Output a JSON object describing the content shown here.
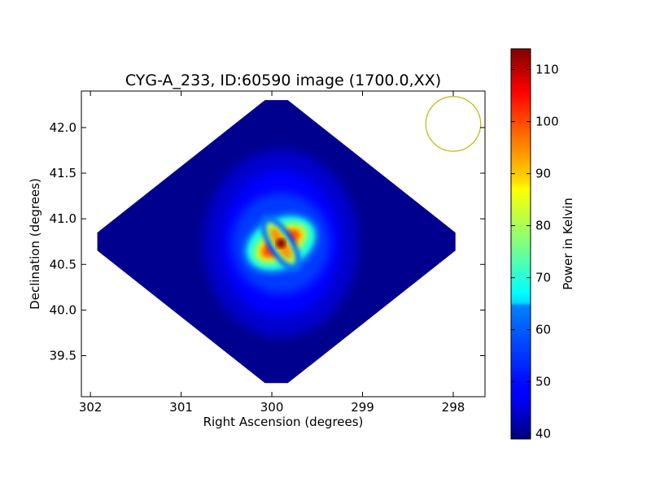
{
  "chart_data": {
    "type": "heatmap",
    "title": "CYG-A_233, ID:60590 image (1700.0,XX)",
    "xlabel": "Right Ascension (degrees)",
    "ylabel": "Declination (degrees)",
    "x_ticks": [
      "302",
      "301",
      "300",
      "299",
      "298"
    ],
    "y_ticks": [
      "39.5",
      "40.0",
      "40.5",
      "41.0",
      "41.5",
      "42.0"
    ],
    "xlim": [
      302.1,
      297.65
    ],
    "ylim": [
      39.05,
      42.4
    ],
    "x_ticks_values": [
      302,
      301,
      300,
      299,
      298
    ],
    "y_ticks_values": [
      39.5,
      40.0,
      40.5,
      41.0,
      41.5,
      42.0
    ],
    "colorbar": {
      "label": "Power in Kelvin",
      "colormap": "jet",
      "range": [
        39,
        114
      ],
      "ticks": [
        "40",
        "50",
        "60",
        "70",
        "80",
        "90",
        "100",
        "110"
      ],
      "ticks_values": [
        40,
        50,
        60,
        70,
        80,
        90,
        100,
        110
      ]
    },
    "map": {
      "background_value": 40,
      "peak_value": 114,
      "peak_ra": 299.9,
      "peak_dec": 40.73,
      "footprint": "diamond",
      "footprint_center_ra": 299.95,
      "footprint_center_dec": 40.75,
      "footprint_half_width_ra": 2.1,
      "footprint_half_height_dec": 1.65
    },
    "beam_circle": {
      "center_ra": 298.0,
      "center_dec": 42.04,
      "radius_deg": 0.3,
      "color": "#bbbb00"
    },
    "grid": false
  }
}
